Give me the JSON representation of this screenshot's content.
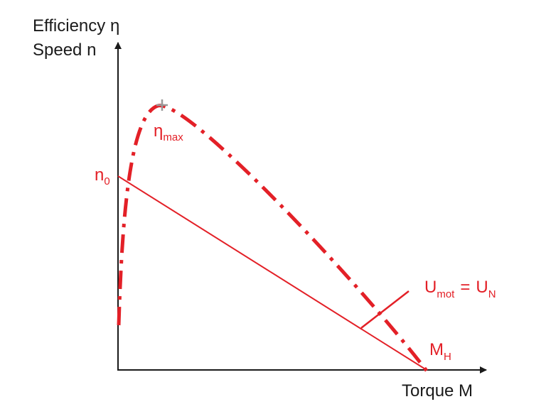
{
  "axes": {
    "y_label_1": "Efficiency η",
    "y_label_2": "Speed n",
    "x_label": "Torque M"
  },
  "labels": {
    "n0": {
      "main": "n",
      "sub": "0"
    },
    "eta_max": {
      "main": "η",
      "sub": "max"
    },
    "voltage": {
      "main_1": "U",
      "sub_1": "mot",
      "equals": "=",
      "main_2": "U",
      "sub_2": "N"
    },
    "m_h": {
      "main": "M",
      "sub": "H"
    }
  }
}
